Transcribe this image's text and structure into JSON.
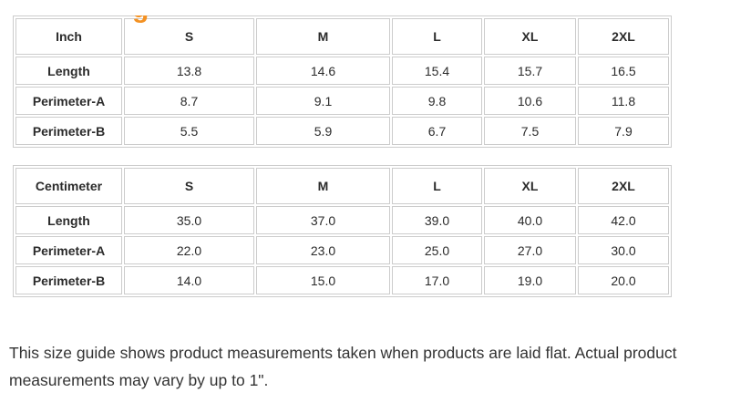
{
  "heading_fragment": {
    "text": "g"
  },
  "size_guide": {
    "tables": [
      {
        "unit": "Inch",
        "sizes": [
          "S",
          "M",
          "L",
          "XL",
          "2XL"
        ],
        "rows": [
          {
            "label": "Length",
            "values": [
              "13.8",
              "14.6",
              "15.4",
              "15.7",
              "16.5"
            ]
          },
          {
            "label": "Perimeter-A",
            "values": [
              "8.7",
              "9.1",
              "9.8",
              "10.6",
              "11.8"
            ]
          },
          {
            "label": "Perimeter-B",
            "values": [
              "5.5",
              "5.9",
              "6.7",
              "7.5",
              "7.9"
            ]
          }
        ]
      },
      {
        "unit": "Centimeter",
        "sizes": [
          "S",
          "M",
          "L",
          "XL",
          "2XL"
        ],
        "rows": [
          {
            "label": "Length",
            "values": [
              "35.0",
              "37.0",
              "39.0",
              "40.0",
              "42.0"
            ]
          },
          {
            "label": "Perimeter-A",
            "values": [
              "22.0",
              "23.0",
              "25.0",
              "27.0",
              "30.0"
            ]
          },
          {
            "label": "Perimeter-B",
            "values": [
              "14.0",
              "15.0",
              "17.0",
              "19.0",
              "20.0"
            ]
          }
        ]
      }
    ],
    "note": "This size guide shows product measurements taken when products are laid flat. Actual product measurements may vary by up to 1\"."
  },
  "colors": {
    "accent_orange": "#f39122",
    "table_border": "#cccccc",
    "text": "#333333"
  }
}
